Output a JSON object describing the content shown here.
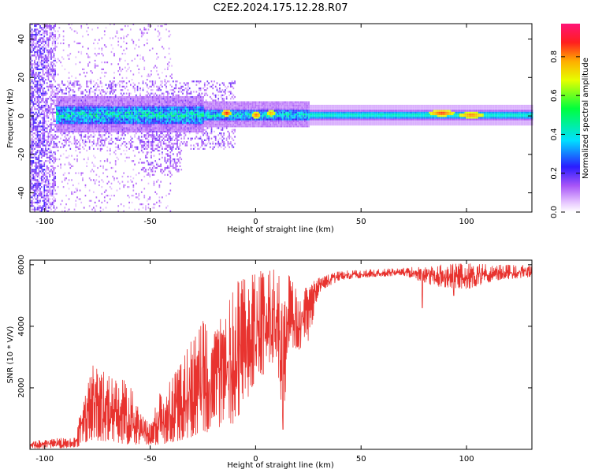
{
  "title": "C2E2.2024.175.12.28.R07",
  "spectrogram": {
    "type": "heatmap",
    "xlabel": "Height of straight line (km)",
    "ylabel": "Frequency (Hz)",
    "xlim": [
      -107,
      131
    ],
    "ylim": [
      -50,
      48
    ],
    "xticks": [
      -100,
      -50,
      0,
      50,
      100
    ],
    "yticks": [
      -40,
      -20,
      0,
      20,
      40
    ],
    "colorbar": {
      "label": "Normalized spectral amplitude",
      "range": [
        0,
        0.97
      ],
      "ticks": [
        0.0,
        0.2,
        0.4,
        0.6,
        0.8
      ],
      "tick_labels": [
        "0.0",
        "0.2",
        "0.4",
        "0.6",
        "0.8"
      ]
    },
    "hotspots": [
      {
        "x": -14,
        "y": 1,
        "amp": 0.95
      },
      {
        "x": 0,
        "y": 0,
        "amp": 0.9
      },
      {
        "x": 7,
        "y": 1,
        "amp": 0.85
      },
      {
        "x": 88,
        "y": 1,
        "amp": 0.92
      },
      {
        "x": 102,
        "y": 0,
        "amp": 0.88
      }
    ]
  },
  "snr": {
    "type": "line",
    "xlabel": "Height of straight line (km)",
    "ylabel": "SNR (10 * V/V)",
    "xlim": [
      -107,
      131
    ],
    "ylim": [
      0,
      6150
    ],
    "xticks": [
      -100,
      -50,
      0,
      50,
      100
    ],
    "yticks": [
      2000,
      4000,
      6000
    ],
    "color": "#e8332f",
    "envelope": [
      {
        "x": -107,
        "lo": 20,
        "hi": 280
      },
      {
        "x": -85,
        "lo": 40,
        "hi": 420
      },
      {
        "x": -82,
        "lo": 200,
        "hi": 1800
      },
      {
        "x": -77,
        "lo": 300,
        "hi": 2800
      },
      {
        "x": -70,
        "lo": 250,
        "hi": 2400
      },
      {
        "x": -60,
        "lo": 150,
        "hi": 2200
      },
      {
        "x": -55,
        "lo": 100,
        "hi": 1300
      },
      {
        "x": -50,
        "lo": 80,
        "hi": 900
      },
      {
        "x": -45,
        "lo": 150,
        "hi": 1900
      },
      {
        "x": -38,
        "lo": 250,
        "hi": 2500
      },
      {
        "x": -30,
        "lo": 400,
        "hi": 3600
      },
      {
        "x": -25,
        "lo": 600,
        "hi": 4200
      },
      {
        "x": -20,
        "lo": 500,
        "hi": 3700
      },
      {
        "x": -15,
        "lo": 900,
        "hi": 4500
      },
      {
        "x": -10,
        "lo": 800,
        "hi": 5400
      },
      {
        "x": -5,
        "lo": 1500,
        "hi": 5600
      },
      {
        "x": 0,
        "lo": 2200,
        "hi": 5700
      },
      {
        "x": 5,
        "lo": 2500,
        "hi": 5900
      },
      {
        "x": 10,
        "lo": 3000,
        "hi": 5900
      },
      {
        "x": 13,
        "lo": 700,
        "hi": 5400
      },
      {
        "x": 16,
        "lo": 3400,
        "hi": 5700
      },
      {
        "x": 20,
        "lo": 3200,
        "hi": 5100
      },
      {
        "x": 25,
        "lo": 3500,
        "hi": 5400
      },
      {
        "x": 30,
        "lo": 5100,
        "hi": 5600
      },
      {
        "x": 40,
        "lo": 5500,
        "hi": 5800
      },
      {
        "x": 55,
        "lo": 5600,
        "hi": 5850
      },
      {
        "x": 70,
        "lo": 5650,
        "hi": 5900
      },
      {
        "x": 85,
        "lo": 5300,
        "hi": 6000
      },
      {
        "x": 100,
        "lo": 5200,
        "hi": 6050
      },
      {
        "x": 115,
        "lo": 5500,
        "hi": 6000
      },
      {
        "x": 131,
        "lo": 5600,
        "hi": 6000
      }
    ],
    "dips": [
      {
        "x": 13,
        "value": 650
      },
      {
        "x": 79,
        "value": 4600
      },
      {
        "x": 94,
        "value": 5000
      }
    ]
  }
}
